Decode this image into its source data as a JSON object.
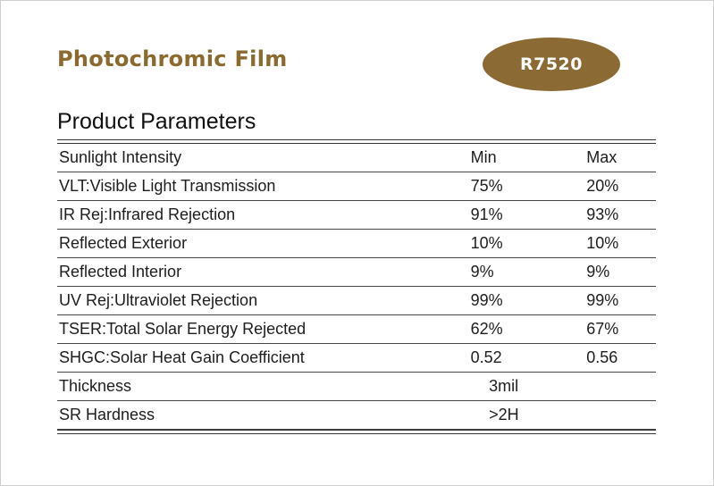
{
  "header": {
    "brand_title": "Photochromic Film",
    "model_code": "R7520",
    "accent_color": "#8b6a33"
  },
  "section_title": "Product Parameters",
  "table": {
    "columns": {
      "label": "Sunlight Intensity",
      "min": "Min",
      "max": "Max"
    },
    "rows": [
      {
        "label": "VLT:Visible Light Transmission",
        "min": "75%",
        "max": "20%"
      },
      {
        "label": "IR Rej:Infrared Rejection",
        "min": "91%",
        "max": "93%"
      },
      {
        "label": "Reflected Exterior",
        "min": "10%",
        "max": "10%"
      },
      {
        "label": "Reflected Interior",
        "min": "9%",
        "max": "9%"
      },
      {
        "label": "UV Rej:Ultraviolet Rejection",
        "min": "99%",
        "max": "99%"
      },
      {
        "label": "TSER:Total Solar Energy Rejected",
        "min": "62%",
        "max": "67%"
      },
      {
        "label": "SHGC:Solar Heat Gain Coefficient",
        "min": "0.52",
        "max": "0.56"
      }
    ],
    "single_rows": [
      {
        "label": "Thickness",
        "value": "3mil"
      },
      {
        "label": "SR Hardness",
        "value": ">2H"
      }
    ]
  }
}
